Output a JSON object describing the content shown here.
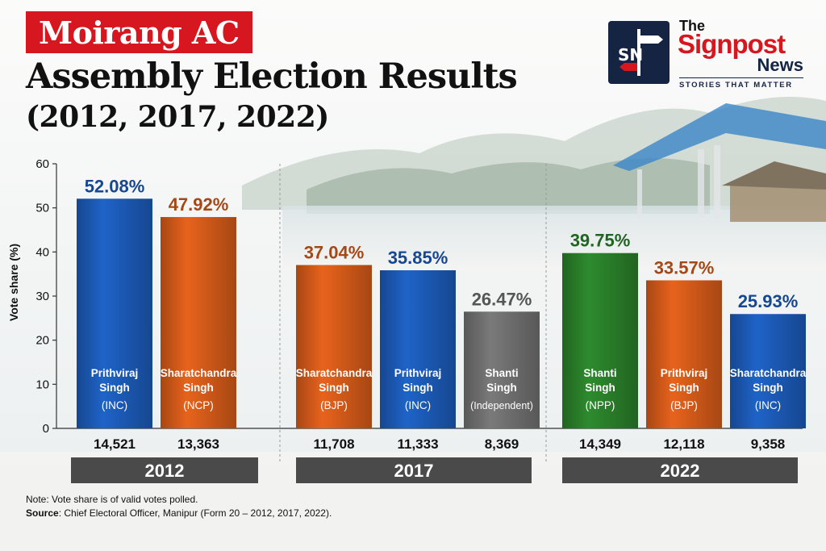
{
  "header": {
    "tag": "Moirang AC",
    "title_line1": "Assembly Election Results",
    "title_line2": "(2012, 2017, 2022)"
  },
  "logo": {
    "mark": "SN",
    "brand_the": "The",
    "brand_name": "Signpost",
    "brand_news": "News",
    "tagline": "STORIES THAT MATTER"
  },
  "footer": {
    "note": "Note: Vote share is of valid votes polled.",
    "source_label": "Source",
    "source_text": ": Chief Electoral Officer, Manipur (Form 20 – 2012, 2017, 2022)."
  },
  "colors": {
    "INC": "#1f63c8",
    "NCP": "#e8631c",
    "BJP": "#e8631c",
    "Independent": "#7a7a7a",
    "NPP": "#2e8b2e",
    "year_band": "#4a4a4a"
  },
  "chart_data": {
    "type": "bar",
    "ylabel": "Vote share (%)",
    "ylim": [
      0,
      60
    ],
    "yticks": [
      0,
      10,
      20,
      30,
      40,
      50,
      60
    ],
    "groups": [
      {
        "year": "2012",
        "bars": [
          {
            "name": "Prithviraj",
            "name2": "Singh",
            "party": "(INC)",
            "party_key": "INC",
            "value": 52.08,
            "label": "52.08%",
            "votes": "14,521"
          },
          {
            "name": "Sharatchandra",
            "name2": "Singh",
            "party": "(NCP)",
            "party_key": "NCP",
            "value": 47.92,
            "label": "47.92%",
            "votes": "13,363"
          }
        ]
      },
      {
        "year": "2017",
        "bars": [
          {
            "name": "Sharatchandra",
            "name2": "Singh",
            "party": "(BJP)",
            "party_key": "BJP",
            "value": 37.04,
            "label": "37.04%",
            "votes": "11,708"
          },
          {
            "name": "Prithviraj",
            "name2": "Singh",
            "party": "(INC)",
            "party_key": "INC",
            "value": 35.85,
            "label": "35.85%",
            "votes": "11,333"
          },
          {
            "name": "Shanti",
            "name2": "Singh",
            "party": "(Independent)",
            "party_key": "Independent",
            "value": 26.47,
            "label": "26.47%",
            "votes": "8,369"
          }
        ]
      },
      {
        "year": "2022",
        "bars": [
          {
            "name": "Shanti",
            "name2": "Singh",
            "party": "(NPP)",
            "party_key": "NPP",
            "value": 39.75,
            "label": "39.75%",
            "votes": "14,349"
          },
          {
            "name": "Prithviraj",
            "name2": "Singh",
            "party": "(BJP)",
            "party_key": "BJP",
            "value": 33.57,
            "label": "33.57%",
            "votes": "12,118"
          },
          {
            "name": "Sharatchandra",
            "name2": "Singh",
            "party": "(INC)",
            "party_key": "INC",
            "value": 25.93,
            "label": "25.93%",
            "votes": "9,358"
          }
        ]
      }
    ]
  }
}
